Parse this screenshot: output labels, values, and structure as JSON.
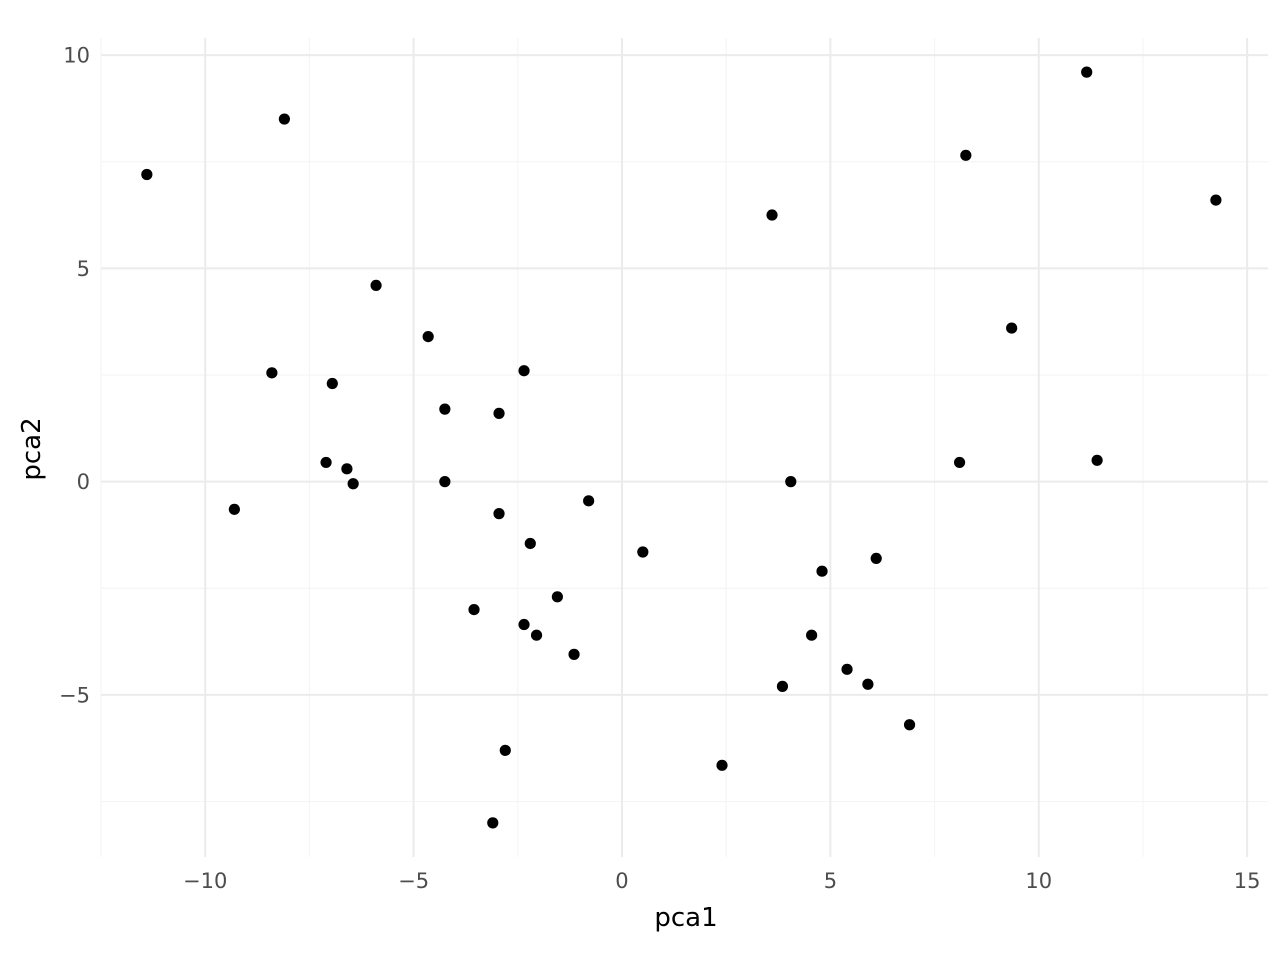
{
  "chart_data": {
    "type": "scatter",
    "title": "",
    "xlabel": "pca1",
    "ylabel": "pca2",
    "xlim": [
      -12.5,
      15.5
    ],
    "ylim": [
      -8.8,
      10.4
    ],
    "x_ticks": [
      -10,
      -5,
      0,
      5,
      10,
      15
    ],
    "y_ticks": [
      -5,
      0,
      5,
      10
    ],
    "x_tick_labels": [
      "−10",
      "−5",
      "0",
      "5",
      "10",
      "15"
    ],
    "y_tick_labels": [
      "−5",
      "0",
      "5",
      "10"
    ],
    "grid": true,
    "legend": "none",
    "point_color": "#000000",
    "points": [
      {
        "x": -11.4,
        "y": 7.2
      },
      {
        "x": -8.1,
        "y": 8.5
      },
      {
        "x": -9.3,
        "y": -0.65
      },
      {
        "x": -8.4,
        "y": 2.55
      },
      {
        "x": -7.1,
        "y": 0.45
      },
      {
        "x": -6.95,
        "y": 2.3
      },
      {
        "x": -6.6,
        "y": 0.3
      },
      {
        "x": -6.45,
        "y": -0.05
      },
      {
        "x": -5.9,
        "y": 4.6
      },
      {
        "x": -4.65,
        "y": 3.4
      },
      {
        "x": -4.25,
        "y": 1.7
      },
      {
        "x": -4.25,
        "y": 0.0
      },
      {
        "x": -3.55,
        "y": -3.0
      },
      {
        "x": -3.1,
        "y": -8.0
      },
      {
        "x": -2.95,
        "y": 1.6
      },
      {
        "x": -2.95,
        "y": -0.75
      },
      {
        "x": -2.8,
        "y": -6.3
      },
      {
        "x": -2.35,
        "y": 2.6
      },
      {
        "x": -2.35,
        "y": -3.35
      },
      {
        "x": -2.2,
        "y": -1.45
      },
      {
        "x": -2.05,
        "y": -3.6
      },
      {
        "x": -1.55,
        "y": -2.7
      },
      {
        "x": -1.15,
        "y": -4.05
      },
      {
        "x": -0.8,
        "y": -0.45
      },
      {
        "x": 0.5,
        "y": -1.65
      },
      {
        "x": 2.4,
        "y": -6.65
      },
      {
        "x": 3.6,
        "y": 6.25
      },
      {
        "x": 3.85,
        "y": -4.8
      },
      {
        "x": 4.05,
        "y": 0.0
      },
      {
        "x": 4.55,
        "y": -3.6
      },
      {
        "x": 4.8,
        "y": -2.1
      },
      {
        "x": 5.4,
        "y": -4.4
      },
      {
        "x": 5.9,
        "y": -4.75
      },
      {
        "x": 6.1,
        "y": -1.8
      },
      {
        "x": 6.9,
        "y": -5.7
      },
      {
        "x": 8.1,
        "y": 0.45
      },
      {
        "x": 8.25,
        "y": 7.65
      },
      {
        "x": 9.35,
        "y": 3.6
      },
      {
        "x": 11.15,
        "y": 9.6
      },
      {
        "x": 11.4,
        "y": 0.5
      },
      {
        "x": 14.25,
        "y": 6.6
      }
    ]
  }
}
